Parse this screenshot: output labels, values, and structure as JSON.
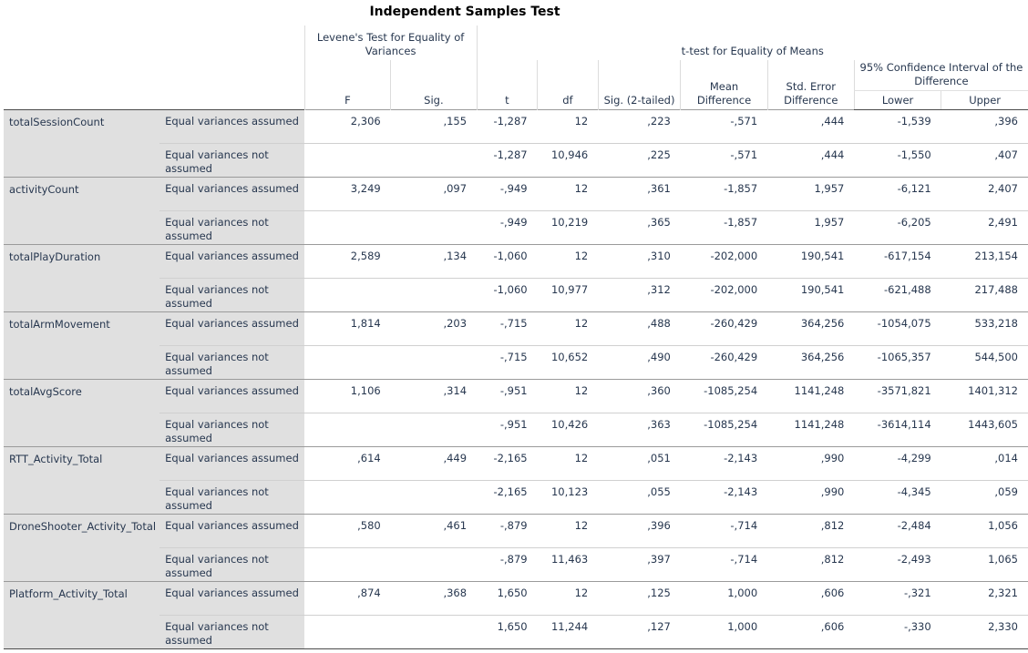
{
  "title": "Independent Samples Test",
  "headers": {
    "levene": "Levene's Test for Equality of Variances",
    "ttest": "t-test for Equality of Means",
    "ci": "95% Confidence Interval of the Difference",
    "F": "F",
    "sig": "Sig.",
    "t": "t",
    "df": "df",
    "sig2": "Sig. (2-tailed)",
    "meandiff": "Mean Difference",
    "sediff": "Std. Error Difference",
    "lower": "Lower",
    "upper": "Upper"
  },
  "variables": [
    {
      "name": "totalSessionCount",
      "assumed": {
        "label": "Equal variances assumed",
        "F": "2,306",
        "sig": ",155",
        "t": "-1,287",
        "df": "12",
        "sig2": ",223",
        "md": "-,571",
        "se": ",444",
        "lower": "-1,539",
        "upper": ",396"
      },
      "notassumed": {
        "label": "Equal variances not assumed",
        "t": "-1,287",
        "df": "10,946",
        "sig2": ",225",
        "md": "-,571",
        "se": ",444",
        "lower": "-1,550",
        "upper": ",407"
      }
    },
    {
      "name": "activityCount",
      "assumed": {
        "label": "Equal variances assumed",
        "F": "3,249",
        "sig": ",097",
        "t": "-,949",
        "df": "12",
        "sig2": ",361",
        "md": "-1,857",
        "se": "1,957",
        "lower": "-6,121",
        "upper": "2,407"
      },
      "notassumed": {
        "label": "Equal variances not assumed",
        "t": "-,949",
        "df": "10,219",
        "sig2": ",365",
        "md": "-1,857",
        "se": "1,957",
        "lower": "-6,205",
        "upper": "2,491"
      }
    },
    {
      "name": "totalPlayDuration",
      "assumed": {
        "label": "Equal variances assumed",
        "F": "2,589",
        "sig": ",134",
        "t": "-1,060",
        "df": "12",
        "sig2": ",310",
        "md": "-202,000",
        "se": "190,541",
        "lower": "-617,154",
        "upper": "213,154"
      },
      "notassumed": {
        "label": "Equal variances not assumed",
        "t": "-1,060",
        "df": "10,977",
        "sig2": ",312",
        "md": "-202,000",
        "se": "190,541",
        "lower": "-621,488",
        "upper": "217,488"
      }
    },
    {
      "name": "totalArmMovement",
      "assumed": {
        "label": "Equal variances assumed",
        "F": "1,814",
        "sig": ",203",
        "t": "-,715",
        "df": "12",
        "sig2": ",488",
        "md": "-260,429",
        "se": "364,256",
        "lower": "-1054,075",
        "upper": "533,218"
      },
      "notassumed": {
        "label": "Equal variances not assumed",
        "t": "-,715",
        "df": "10,652",
        "sig2": ",490",
        "md": "-260,429",
        "se": "364,256",
        "lower": "-1065,357",
        "upper": "544,500"
      }
    },
    {
      "name": "totalAvgScore",
      "assumed": {
        "label": "Equal variances assumed",
        "F": "1,106",
        "sig": ",314",
        "t": "-,951",
        "df": "12",
        "sig2": ",360",
        "md": "-1085,254",
        "se": "1141,248",
        "lower": "-3571,821",
        "upper": "1401,312"
      },
      "notassumed": {
        "label": "Equal variances not assumed",
        "t": "-,951",
        "df": "10,426",
        "sig2": ",363",
        "md": "-1085,254",
        "se": "1141,248",
        "lower": "-3614,114",
        "upper": "1443,605"
      }
    },
    {
      "name": "RTT_Activity_Total",
      "assumed": {
        "label": "Equal variances assumed",
        "F": ",614",
        "sig": ",449",
        "t": "-2,165",
        "df": "12",
        "sig2": ",051",
        "md": "-2,143",
        "se": ",990",
        "lower": "-4,299",
        "upper": ",014"
      },
      "notassumed": {
        "label": "Equal variances not assumed",
        "t": "-2,165",
        "df": "10,123",
        "sig2": ",055",
        "md": "-2,143",
        "se": ",990",
        "lower": "-4,345",
        "upper": ",059"
      }
    },
    {
      "name": "DroneShooter_Activity_Total",
      "assumed": {
        "label": "Equal variances assumed",
        "F": ",580",
        "sig": ",461",
        "t": "-,879",
        "df": "12",
        "sig2": ",396",
        "md": "-,714",
        "se": ",812",
        "lower": "-2,484",
        "upper": "1,056"
      },
      "notassumed": {
        "label": "Equal variances not assumed",
        "t": "-,879",
        "df": "11,463",
        "sig2": ",397",
        "md": "-,714",
        "se": ",812",
        "lower": "-2,493",
        "upper": "1,065"
      }
    },
    {
      "name": "Platform_Activity_Total",
      "assumed": {
        "label": "Equal variances assumed",
        "F": ",874",
        "sig": ",368",
        "t": "1,650",
        "df": "12",
        "sig2": ",125",
        "md": "1,000",
        "se": ",606",
        "lower": "-,321",
        "upper": "2,321"
      },
      "notassumed": {
        "label": "Equal variances not assumed",
        "t": "1,650",
        "df": "11,244",
        "sig2": ",127",
        "md": "1,000",
        "se": ",606",
        "lower": "-,330",
        "upper": "2,330"
      }
    }
  ]
}
